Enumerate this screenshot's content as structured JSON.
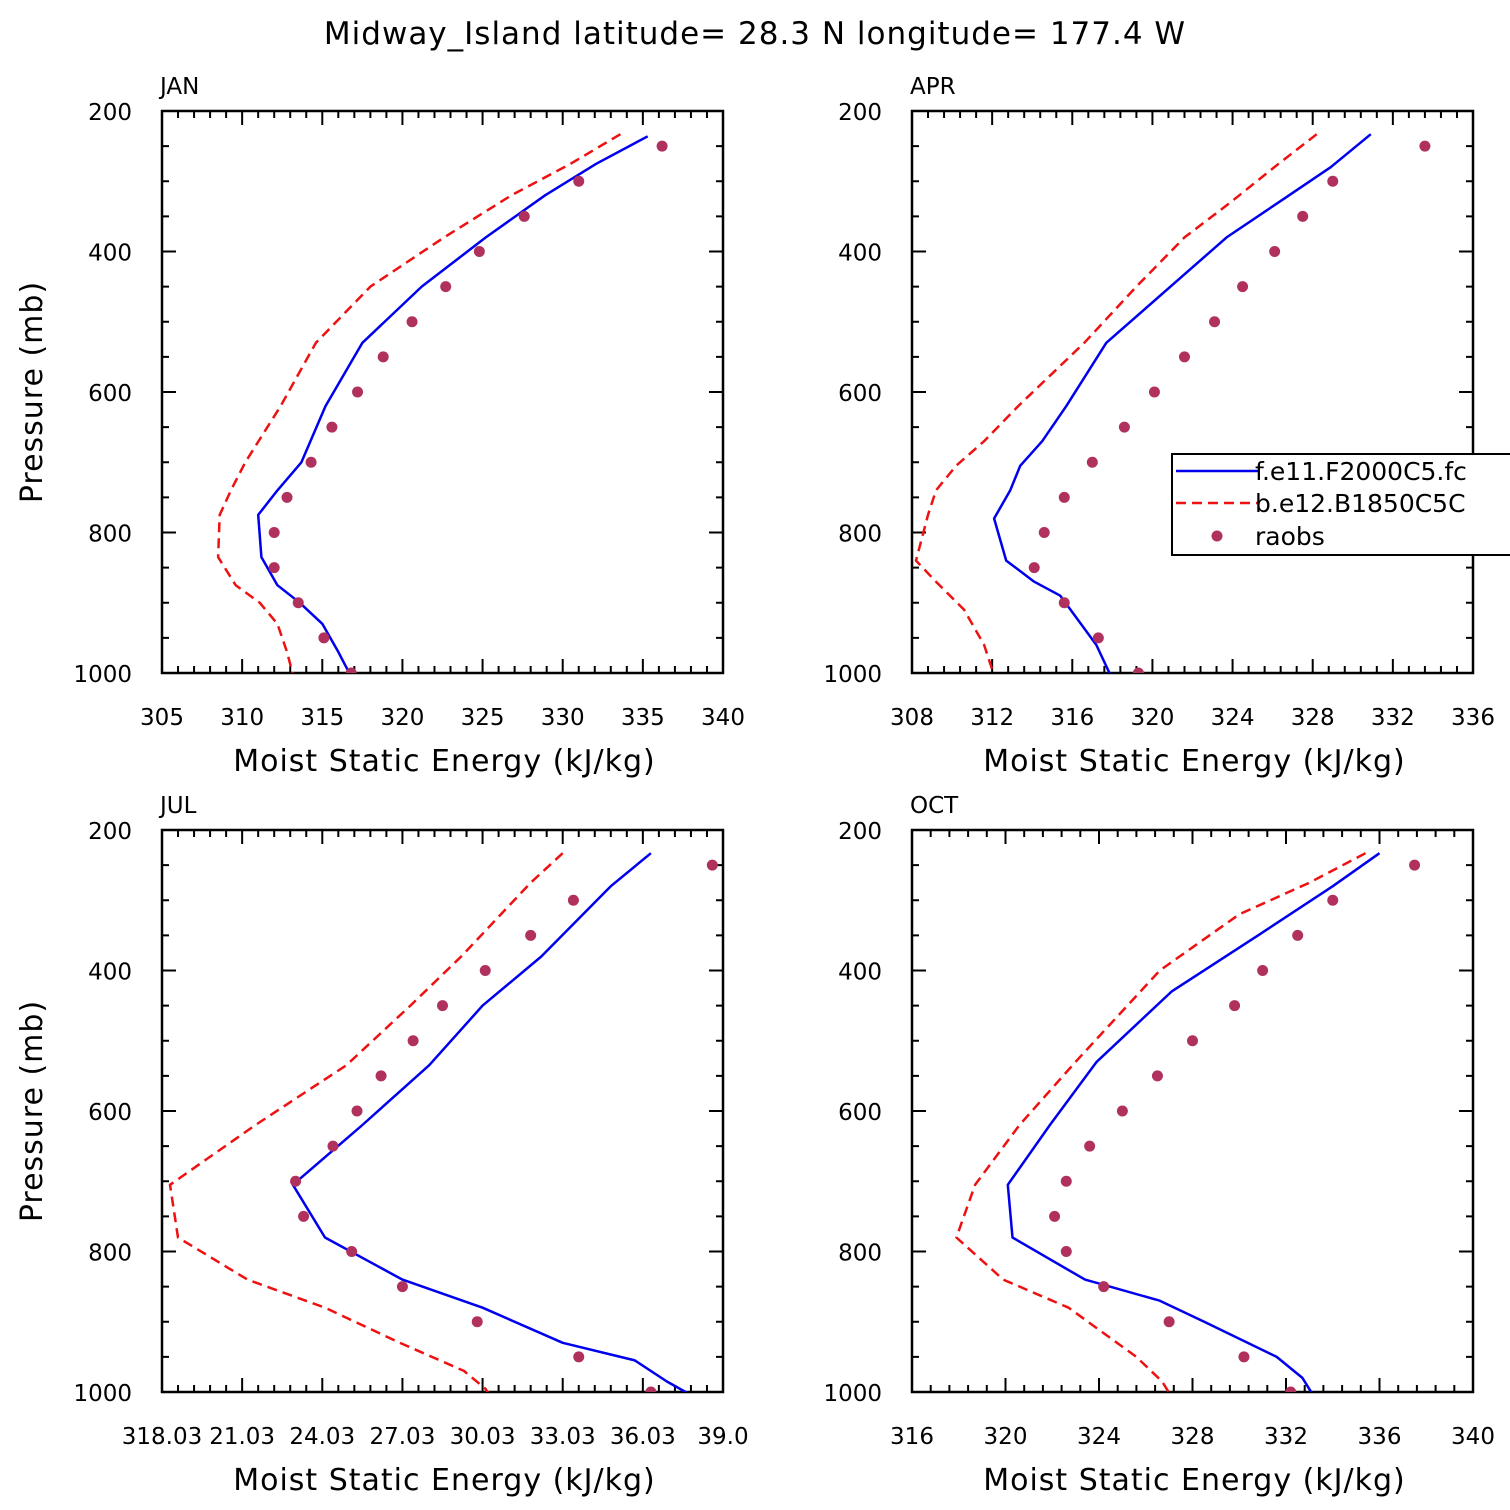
{
  "title": "Midway_Island  latitude= 28.3 N longitude= 177.4 W",
  "legend": {
    "entries": [
      "f.e11.F2000C5.fc",
      "b.e12.B1850C5C",
      "raobs"
    ]
  },
  "colors": {
    "model_f": "#0000ee",
    "model_b": "#ee1111",
    "raobs": "#b0305e"
  },
  "chart_data": [
    {
      "type": "line",
      "panel_title": "JAN",
      "xlabel": "Moist Static Energy (kJ/kg)",
      "ylabel": "Pressure (mb)",
      "xlim": [
        305,
        340
      ],
      "xticks": [
        305,
        310,
        315,
        320,
        325,
        330,
        335,
        340
      ],
      "xtick_labels": [
        "305",
        "310",
        "315",
        "320",
        "325",
        "330",
        "335",
        "340"
      ],
      "ylim": [
        200,
        1000
      ],
      "y_inverted": true,
      "yticks": [
        200,
        400,
        600,
        800,
        1000
      ],
      "ytick_labels": [
        "200",
        "400",
        "600",
        "800",
        "1000"
      ],
      "series": [
        {
          "name": "f.e11.F2000C5.fc",
          "style": "solid",
          "x": [
            335.3,
            332.1,
            328.9,
            325.2,
            321.2,
            317.5,
            315.2,
            313.7,
            312.2,
            311.0,
            311.2,
            312.2,
            313.6,
            315.0,
            316.0,
            316.8
          ],
          "y": [
            236,
            275,
            320,
            380,
            450,
            530,
            620,
            700,
            740,
            775,
            835,
            875,
            900,
            930,
            970,
            1005
          ]
        },
        {
          "name": "b.e12.B1850C5C",
          "style": "dashed",
          "x": [
            333.6,
            330.5,
            326.8,
            322.6,
            318.0,
            314.6,
            312.4,
            310.2,
            309.3,
            308.6,
            308.5,
            309.6,
            311.1,
            312.2,
            312.8,
            313.2
          ],
          "y": [
            233,
            275,
            320,
            380,
            450,
            530,
            620,
            700,
            740,
            775,
            835,
            875,
            900,
            930,
            970,
            1005
          ]
        },
        {
          "name": "raobs",
          "style": "markers",
          "x": [
            336.2,
            331.0,
            327.6,
            324.8,
            322.7,
            320.6,
            318.8,
            317.2,
            315.6,
            314.3,
            312.8,
            312.0,
            312.0,
            313.5,
            315.1,
            316.8
          ],
          "y": [
            250,
            300,
            350,
            400,
            450,
            500,
            550,
            600,
            650,
            700,
            750,
            800,
            850,
            900,
            950,
            1000
          ]
        }
      ]
    },
    {
      "type": "line",
      "panel_title": "APR",
      "xlabel": "Moist Static Energy (kJ/kg)",
      "ylabel": "",
      "xlim": [
        308,
        336
      ],
      "xticks": [
        308,
        312,
        316,
        320,
        324,
        328,
        332,
        336
      ],
      "xtick_labels": [
        "308",
        "312",
        "316",
        "320",
        "324",
        "328",
        "332",
        "336"
      ],
      "ylim": [
        200,
        1000
      ],
      "y_inverted": true,
      "yticks": [
        200,
        400,
        600,
        800,
        1000
      ],
      "ytick_labels": [
        "200",
        "400",
        "600",
        "800",
        "1000"
      ],
      "legend": true,
      "series": [
        {
          "name": "f.e11.F2000C5.fc",
          "style": "solid",
          "x": [
            330.9,
            328.9,
            326.3,
            323.7,
            320.9,
            317.7,
            315.7,
            314.5,
            313.4,
            312.9,
            312.1,
            312.7,
            314.1,
            315.4,
            317.2,
            318.1
          ],
          "y": [
            233,
            280,
            330,
            380,
            450,
            530,
            620,
            670,
            705,
            740,
            780,
            840,
            870,
            890,
            960,
            1015
          ]
        },
        {
          "name": "b.e12.B1850C5C",
          "style": "dashed",
          "x": [
            328.2,
            326.3,
            323.9,
            321.6,
            319.2,
            316.6,
            313.3,
            311.6,
            310.2,
            309.2,
            308.8,
            308.2,
            309.2,
            310.6,
            311.6,
            312.2
          ],
          "y": [
            233,
            275,
            330,
            380,
            450,
            530,
            620,
            670,
            705,
            740,
            775,
            840,
            870,
            910,
            960,
            1012
          ]
        },
        {
          "name": "raobs",
          "style": "markers",
          "x": [
            333.6,
            329.0,
            327.5,
            326.1,
            324.5,
            323.1,
            321.6,
            320.1,
            318.6,
            317.0,
            315.6,
            314.6,
            314.1,
            315.6,
            317.3,
            319.3
          ],
          "y": [
            250,
            300,
            350,
            400,
            450,
            500,
            550,
            600,
            650,
            700,
            750,
            800,
            850,
            900,
            950,
            1000
          ]
        }
      ]
    },
    {
      "type": "line",
      "panel_title": "JUL",
      "xlabel": "Moist Static Energy (kJ/kg)",
      "ylabel": "Pressure (mb)",
      "xlim": [
        318.0,
        339.0
      ],
      "xticks": [
        318.0,
        321.0,
        324.0,
        327.0,
        330.0,
        333.0,
        336.0,
        339.0
      ],
      "xtick_labels": [
        "318.03",
        "21.03",
        "24.03",
        "27.03",
        "30.03",
        "33.03",
        "36.03",
        "39.0"
      ],
      "ylim": [
        200,
        1000
      ],
      "y_inverted": true,
      "yticks": [
        200,
        400,
        600,
        800,
        1000
      ],
      "ytick_labels": [
        "200",
        "400",
        "600",
        "800",
        "1000"
      ],
      "series": [
        {
          "name": "f.e11.F2000C5.fc",
          "style": "solid",
          "x": [
            336.3,
            334.8,
            332.2,
            330.0,
            328.0,
            325.5,
            322.9,
            324.1,
            327.0,
            330.0,
            333.0,
            335.7,
            336.9,
            337.6,
            337.9
          ],
          "y": [
            233,
            280,
            380,
            450,
            535,
            620,
            705,
            780,
            840,
            880,
            930,
            955,
            985,
            1000,
            1015
          ]
        },
        {
          "name": "b.e12.B1850C5C",
          "style": "dashed",
          "x": [
            333.0,
            331.8,
            329.2,
            327.3,
            324.9,
            321.5,
            318.3,
            318.6,
            321.2,
            324.1,
            326.9,
            329.3,
            330.1,
            330.4
          ],
          "y": [
            233,
            275,
            380,
            450,
            535,
            620,
            705,
            780,
            840,
            880,
            930,
            970,
            995,
            1012
          ]
        },
        {
          "name": "raobs",
          "style": "markers",
          "x": [
            338.6,
            333.4,
            331.8,
            330.1,
            328.5,
            327.4,
            326.2,
            325.3,
            324.4,
            323.0,
            323.3,
            325.1,
            327.0,
            329.8,
            333.6,
            336.3
          ],
          "y": [
            250,
            300,
            350,
            400,
            450,
            500,
            550,
            600,
            650,
            700,
            750,
            800,
            850,
            900,
            950,
            1000
          ]
        }
      ]
    },
    {
      "type": "line",
      "panel_title": "OCT",
      "xlabel": "Moist Static Energy (kJ/kg)",
      "ylabel": "",
      "xlim": [
        316,
        340
      ],
      "xticks": [
        316,
        320,
        324,
        328,
        332,
        336,
        340
      ],
      "xtick_labels": [
        "316",
        "320",
        "324",
        "328",
        "332",
        "336",
        "340"
      ],
      "ylim": [
        200,
        1000
      ],
      "y_inverted": true,
      "yticks": [
        200,
        400,
        600,
        800,
        1000
      ],
      "ytick_labels": [
        "200",
        "400",
        "600",
        "800",
        "1000"
      ],
      "series": [
        {
          "name": "f.e11.F2000C5.fc",
          "style": "solid",
          "x": [
            336.0,
            334.0,
            330.8,
            327.1,
            323.9,
            321.9,
            320.1,
            320.3,
            323.4,
            326.6,
            328.5,
            331.6,
            332.7,
            333.3
          ],
          "y": [
            233,
            280,
            350,
            430,
            530,
            620,
            705,
            780,
            840,
            870,
            900,
            950,
            980,
            1012
          ]
        },
        {
          "name": "b.e12.B1850C5C",
          "style": "dashed",
          "x": [
            335.4,
            333.0,
            330.0,
            326.6,
            323.0,
            320.6,
            318.7,
            317.9,
            319.9,
            322.7,
            325.6,
            326.7,
            327.2
          ],
          "y": [
            233,
            275,
            320,
            400,
            530,
            620,
            705,
            780,
            840,
            880,
            950,
            985,
            1012
          ]
        },
        {
          "name": "raobs",
          "style": "markers",
          "x": [
            337.5,
            334.0,
            332.5,
            331.0,
            329.8,
            328.0,
            326.5,
            325.0,
            323.6,
            322.6,
            322.1,
            322.6,
            324.2,
            327.0,
            330.2,
            332.2
          ],
          "y": [
            250,
            300,
            350,
            400,
            450,
            500,
            550,
            600,
            650,
            700,
            750,
            800,
            850,
            900,
            950,
            1000
          ]
        }
      ]
    }
  ]
}
